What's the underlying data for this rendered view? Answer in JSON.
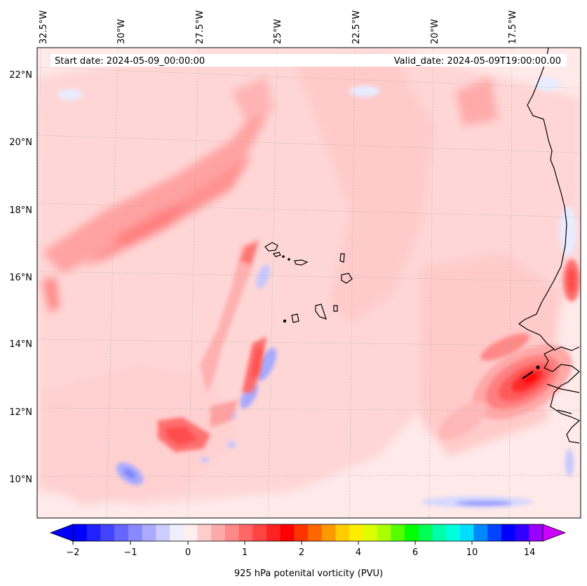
{
  "header": {
    "start_date": "Start date: 2024-05-09_00:00:00",
    "valid_date": "Valid_date: 2024-05-09T19:00:00.00"
  },
  "map": {
    "lon_labels": [
      "32.5°W",
      "30°W",
      "27.5°W",
      "25°W",
      "22.5°W",
      "20°W",
      "17.5°W"
    ],
    "lat_labels": [
      "22°N",
      "20°N",
      "18°N",
      "16°N",
      "14°N",
      "12°N",
      "10°N"
    ]
  },
  "colorbar": {
    "tick_labels": [
      "−2",
      "−1",
      "0",
      "1",
      "2",
      "4",
      "6",
      "10",
      "14"
    ],
    "label": "925 hPa potenital vorticity (PVU)",
    "colors": [
      "#0000ff",
      "#2222ff",
      "#4444ff",
      "#6666ff",
      "#8888ff",
      "#aaaaff",
      "#ccccff",
      "#eeeeff",
      "#ffeeee",
      "#ffcccc",
      "#ffaaaa",
      "#ff8888",
      "#ff6666",
      "#ff4444",
      "#ff2222",
      "#ff0000",
      "#ff3300",
      "#ff6600",
      "#ff9900",
      "#ffcc00",
      "#ffee00",
      "#ddff00",
      "#aaff00",
      "#55ff00",
      "#00ff00",
      "#00ff55",
      "#00ffaa",
      "#00ffdd",
      "#00ddff",
      "#0088ff",
      "#0044ff",
      "#0000ff",
      "#3300ff",
      "#9900ff"
    ],
    "extend_low_color": "#0000ff",
    "extend_high_color": "#cc00ff"
  }
}
